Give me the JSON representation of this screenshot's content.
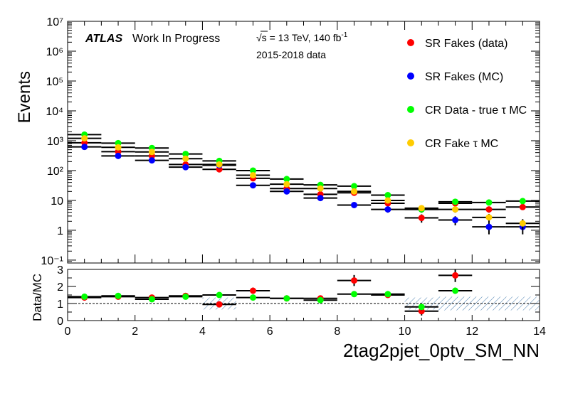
{
  "header": {
    "atlas": "ATLAS",
    "status": "Work In Progress",
    "energy": "√s = 13 TeV, 140 fb",
    "energy_sup": "-1",
    "years": "2015-2018 data"
  },
  "chart_data": [
    {
      "type": "scatter",
      "panel": "main",
      "ylabel": "Events",
      "yscale": "log",
      "ylim": [
        0.08,
        10000000
      ],
      "xlim": [
        0,
        14
      ],
      "yticks": [
        "10⁻¹",
        "1",
        "10",
        "10²",
        "10³",
        "10⁴",
        "10⁵",
        "10⁶",
        "10⁷"
      ],
      "legend_position": "top-right",
      "x": [
        0.5,
        1.5,
        2.5,
        3.5,
        4.5,
        5.5,
        6.5,
        7.5,
        8.5,
        9.5,
        10.5,
        11.5,
        12.5,
        13.5
      ],
      "series": [
        {
          "name": "SR Fakes (data)",
          "color": "#ff0000",
          "values": [
            850,
            430,
            310,
            160,
            110,
            55,
            25,
            16,
            18,
            8,
            2.6,
            8,
            5,
            6
          ]
        },
        {
          "name": "SR Fakes (MC)",
          "color": "#0000ff",
          "values": [
            620,
            310,
            220,
            130,
            150,
            32,
            20,
            12,
            7,
            5,
            5,
            2.2,
            1.3,
            1.3
          ]
        },
        {
          "name": "CR Data - true τ MC",
          "color": "#00ff00",
          "values": [
            1600,
            830,
            570,
            360,
            210,
            100,
            52,
            33,
            30,
            15,
            5,
            9,
            8.5,
            9.5
          ]
        },
        {
          "name": "CR Fake τ MC",
          "color": "#ffcc00",
          "values": [
            1200,
            600,
            420,
            250,
            160,
            70,
            35,
            25,
            20,
            10,
            5.5,
            5,
            2.7,
            1.7
          ]
        }
      ]
    },
    {
      "type": "scatter",
      "panel": "ratio",
      "ylabel": "Data/MC",
      "xlabel": "2tag2pjet_0ptv_SM_NN",
      "ylim": [
        0,
        3
      ],
      "xlim": [
        0,
        14
      ],
      "yticks": [
        "0",
        "1",
        "2",
        "3"
      ],
      "xticks": [
        "0",
        "2",
        "4",
        "6",
        "8",
        "10",
        "12",
        "14"
      ],
      "x": [
        0.5,
        1.5,
        2.5,
        3.5,
        4.5,
        5.5,
        6.5,
        7.5,
        8.5,
        9.5,
        10.5,
        11.5
      ],
      "series": [
        {
          "name": "SR Fakes (data)",
          "color": "#ff0000",
          "values": [
            1.35,
            1.4,
            1.35,
            1.45,
            0.95,
            1.75,
            1.3,
            1.3,
            2.35,
            1.5,
            0.55,
            2.65
          ]
        },
        {
          "name": "CR Data - true τ MC",
          "color": "#00ff00",
          "values": [
            1.4,
            1.45,
            1.25,
            1.4,
            1.5,
            1.35,
            1.3,
            1.2,
            1.55,
            1.55,
            0.8,
            1.75
          ]
        }
      ]
    }
  ]
}
